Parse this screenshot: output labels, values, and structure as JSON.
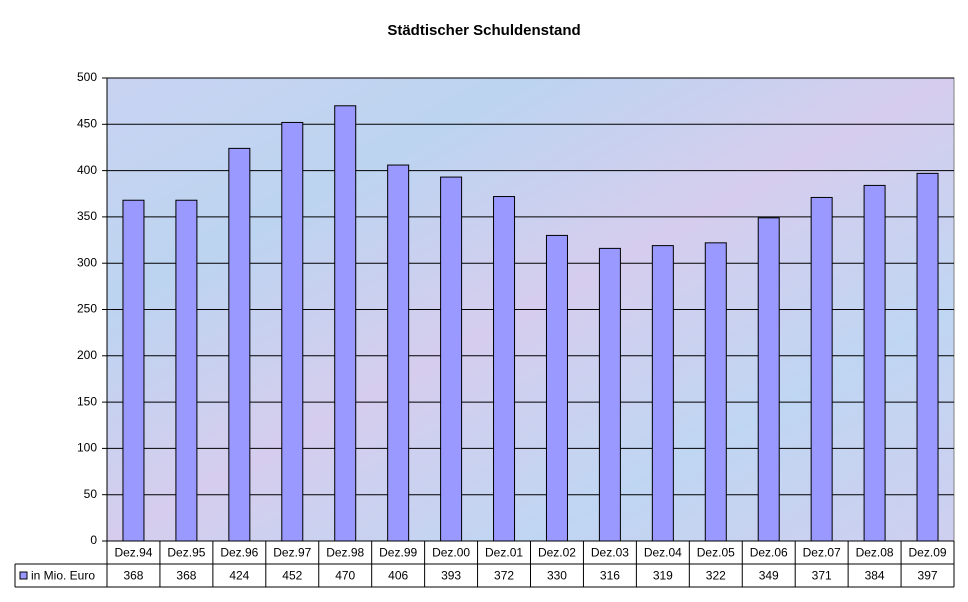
{
  "chart_data": {
    "type": "bar",
    "title": "Städtischer Schuldenstand",
    "categories": [
      "Dez.94",
      "Dez.95",
      "Dez.96",
      "Dez.97",
      "Dez.98",
      "Dez.99",
      "Dez.00",
      "Dez.01",
      "Dez.02",
      "Dez.03",
      "Dez.04",
      "Dez.05",
      "Dez.06",
      "Dez.07",
      "Dez.08",
      "Dez.09"
    ],
    "series": [
      {
        "name": "in Mio. Euro",
        "color": "#9999ff",
        "values": [
          368,
          368,
          424,
          452,
          470,
          406,
          393,
          372,
          330,
          316,
          319,
          322,
          349,
          371,
          384,
          397
        ]
      }
    ],
    "ylim": [
      0,
      500
    ],
    "yticks": [
      0,
      50,
      100,
      150,
      200,
      250,
      300,
      350,
      400,
      450,
      500
    ],
    "grid": true,
    "data_table": true
  }
}
